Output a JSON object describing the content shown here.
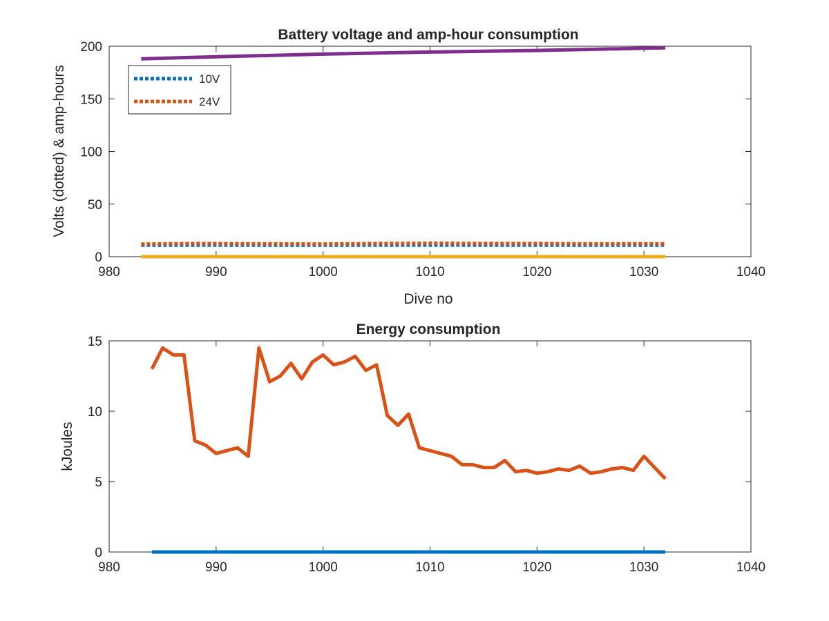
{
  "colors": {
    "blue": "#0072BD",
    "orange": "#D95319",
    "yellow": "#EDB120",
    "purple": "#7E2F8E",
    "axis": "#262626"
  },
  "chart_data": [
    {
      "type": "line",
      "title": "Battery voltage and amp-hour consumption",
      "xlabel": "Dive no",
      "ylabel": "Volts (dotted) & amp-hours",
      "xlim": [
        980,
        1040
      ],
      "ylim": [
        0,
        200
      ],
      "xticks": [
        980,
        990,
        1000,
        1010,
        1020,
        1030,
        1040
      ],
      "yticks": [
        0,
        50,
        100,
        150,
        200
      ],
      "legend_position": "top-left",
      "series": [
        {
          "name": "10V",
          "color": "blue",
          "style": "dotted",
          "x": [
            983,
            990,
            1000,
            1010,
            1020,
            1032
          ],
          "y": [
            11,
            11,
            11,
            11,
            11,
            11
          ]
        },
        {
          "name": "24V",
          "color": "orange",
          "style": "dotted",
          "x": [
            983,
            988,
            992,
            1000,
            1005,
            1010,
            1015,
            1020,
            1025,
            1032
          ],
          "y": [
            12,
            12.5,
            12.3,
            12,
            12.5,
            12.8,
            12.5,
            12.5,
            12.2,
            12.3
          ]
        },
        {
          "color": "yellow",
          "style": "solid",
          "x": [
            983,
            1032
          ],
          "y": [
            0,
            0
          ]
        },
        {
          "color": "purple",
          "style": "solid",
          "x": [
            983,
            990,
            1000,
            1010,
            1020,
            1032
          ],
          "y": [
            188,
            190,
            192.5,
            194.5,
            196,
            198.5
          ]
        }
      ]
    },
    {
      "type": "line",
      "title": "Energy consumption",
      "xlabel": "",
      "ylabel": "kJoules",
      "xlim": [
        980,
        1040
      ],
      "ylim": [
        0,
        15
      ],
      "xticks": [
        980,
        990,
        1000,
        1010,
        1020,
        1030,
        1040
      ],
      "yticks": [
        0,
        5,
        10,
        15
      ],
      "series": [
        {
          "color": "blue",
          "style": "solid",
          "x": [
            984,
            1032
          ],
          "y": [
            0,
            0
          ]
        },
        {
          "color": "orange",
          "style": "solid",
          "x": [
            984,
            985,
            986,
            987,
            988,
            989,
            990,
            991,
            992,
            993,
            994,
            995,
            996,
            997,
            998,
            999,
            1000,
            1001,
            1002,
            1003,
            1004,
            1005,
            1006,
            1007,
            1008,
            1009,
            1010,
            1011,
            1012,
            1013,
            1014,
            1015,
            1016,
            1017,
            1018,
            1019,
            1020,
            1021,
            1022,
            1023,
            1024,
            1025,
            1026,
            1027,
            1028,
            1029,
            1030,
            1031,
            1032
          ],
          "y": [
            13.0,
            14.5,
            14.0,
            14.0,
            7.9,
            7.6,
            7.0,
            7.2,
            7.4,
            6.8,
            14.5,
            12.1,
            12.5,
            13.4,
            12.3,
            13.5,
            14.0,
            13.3,
            13.5,
            13.9,
            12.9,
            13.3,
            9.7,
            9.0,
            9.8,
            7.4,
            7.2,
            7.0,
            6.8,
            6.2,
            6.2,
            6.0,
            6.0,
            6.5,
            5.7,
            5.8,
            5.6,
            5.7,
            5.9,
            5.8,
            6.1,
            5.6,
            5.7,
            5.9,
            6.0,
            5.8,
            6.8,
            6.0,
            5.2
          ]
        }
      ]
    }
  ]
}
